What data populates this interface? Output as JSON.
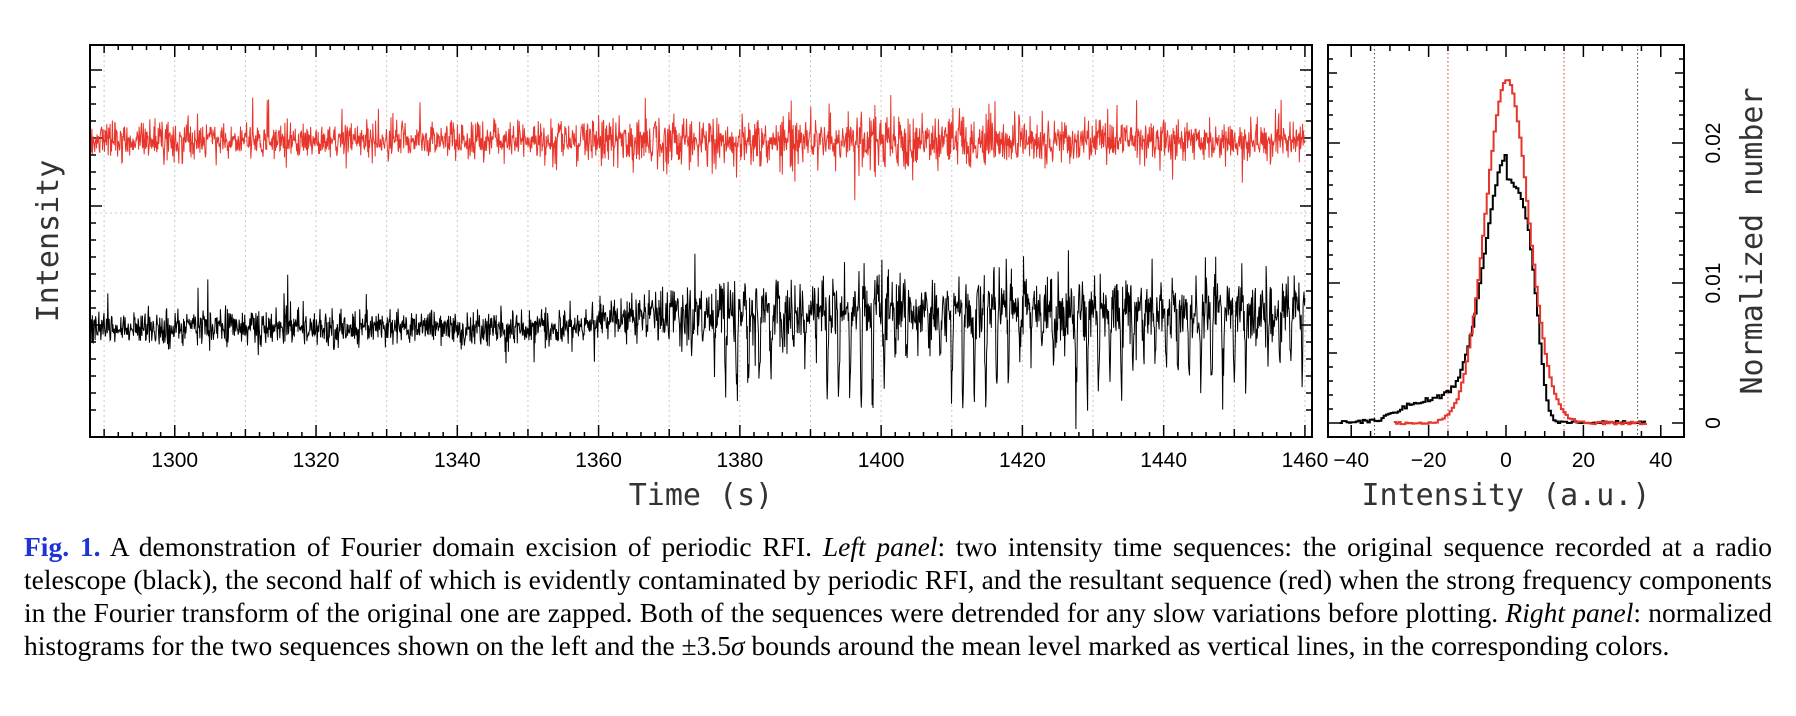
{
  "chart_data": [
    {
      "type": "line",
      "panel": "left",
      "xlabel": "Time (s)",
      "ylabel": "Intensity",
      "xlim": [
        1288,
        1461
      ],
      "x_ticks": [
        "1300",
        "1320",
        "1340",
        "1360",
        "1380",
        "1400",
        "1420",
        "1440",
        "1460"
      ],
      "grid": true,
      "series": [
        {
          "color": "#e8352b",
          "time_start": 1288,
          "time_end": 1460,
          "rfi_start": null
        },
        {
          "color": "#000000",
          "time_start": 1288,
          "time_end": 1460,
          "rfi_start": 1360
        }
      ]
    },
    {
      "type": "histogram",
      "panel": "right",
      "xlabel": "Intensity (a.u.)",
      "ylabel": "Normalized number",
      "xlim": [
        -46,
        46
      ],
      "ylim": [
        -0.001,
        0.027
      ],
      "x_ticks": [
        "−40",
        "−20",
        "0",
        "20",
        "40"
      ],
      "y_ticks": [
        "0",
        "0.01",
        "0.02"
      ],
      "series": [
        {
          "color": "#e8352b",
          "peak_x": 0,
          "peak_y": 0.0245,
          "bounds": [
            -15,
            15
          ]
        },
        {
          "color": "#000000",
          "peak_x": 0,
          "peak_y": 0.0173,
          "bounds": [
            -34,
            34
          ]
        }
      ]
    }
  ],
  "caption": {
    "fig_label": "Fig. 1.",
    "part1": " A demonstration of Fourier domain excision of periodic RFI. ",
    "left_panel_label": "Left panel",
    "part2": ": two intensity time sequences: the original sequence recorded at a radio telescope (black), the second half of which is evidently contaminated by periodic RFI, and the resultant sequence (red) when the strong frequency components in the Fourier transform of the original one are zapped. Both of the sequences were detrended for any slow variations before plotting. ",
    "right_panel_label": "Right panel",
    "part3": ": normalized histograms for the two sequences shown on the left and the ±3.5",
    "sigma": "σ",
    "part4": " bounds around the mean level marked as vertical lines, in the corresponding colors."
  }
}
